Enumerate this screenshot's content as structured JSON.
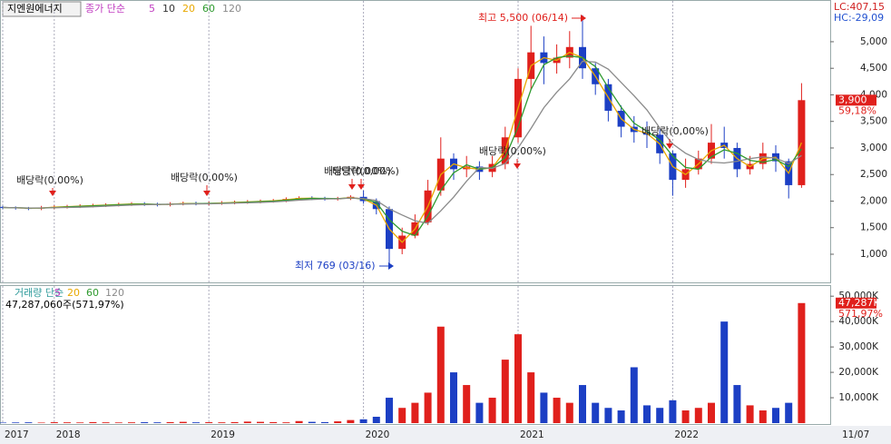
{
  "header": {
    "name": "지엔원에너지",
    "indicator": "종가 단순",
    "lc": "LC:407,15",
    "hc": "HC:-29,09"
  },
  "chart_data": {
    "type": "candlestick",
    "categories": [
      "2017",
      null,
      null,
      null,
      "2018",
      null,
      null,
      null,
      null,
      null,
      null,
      null,
      null,
      null,
      null,
      null,
      "2019",
      null,
      null,
      null,
      null,
      null,
      null,
      null,
      null,
      null,
      null,
      null,
      "2020",
      null,
      null,
      null,
      null,
      null,
      null,
      null,
      null,
      null,
      null,
      null,
      "2021",
      null,
      null,
      null,
      null,
      null,
      null,
      null,
      null,
      null,
      null,
      null,
      "2022",
      null,
      null,
      null,
      null,
      null,
      null,
      null,
      null,
      null,
      null
    ],
    "x_end_label": "11/07",
    "open": [
      1890,
      1880,
      1870,
      1860,
      1880,
      1890,
      1900,
      1910,
      1920,
      1930,
      1940,
      1950,
      1940,
      1930,
      1950,
      1960,
      1950,
      1960,
      1970,
      1980,
      1990,
      2000,
      2010,
      2040,
      2060,
      2050,
      2040,
      2050,
      2080,
      2000,
      1850,
      1100,
      1350,
      1600,
      2200,
      2800,
      2600,
      2650,
      2550,
      2700,
      3200,
      4300,
      4800,
      4600,
      4700,
      4900,
      4500,
      4200,
      3700,
      3400,
      3300,
      3250,
      2900,
      2400,
      2600,
      2800,
      3100,
      3000,
      2600,
      2700,
      2900,
      2750,
      2300
    ],
    "high": [
      1910,
      1900,
      1890,
      1910,
      1920,
      1930,
      1940,
      1950,
      1960,
      1970,
      1980,
      1980,
      1970,
      1980,
      1990,
      1990,
      1990,
      2000,
      2010,
      2020,
      2030,
      2040,
      2070,
      2090,
      2090,
      2080,
      2080,
      2110,
      2200,
      2050,
      1900,
      1500,
      1750,
      2400,
      3200,
      2900,
      2850,
      2750,
      2850,
      3400,
      4500,
      5300,
      5100,
      4950,
      5200,
      5500,
      4600,
      4300,
      3800,
      3600,
      3500,
      3350,
      2950,
      2800,
      2950,
      3450,
      3400,
      3100,
      2850,
      3100,
      3050,
      2800,
      4220
    ],
    "low": [
      1850,
      1840,
      1830,
      1830,
      1850,
      1860,
      1870,
      1880,
      1890,
      1900,
      1910,
      1910,
      1900,
      1900,
      1920,
      1920,
      1920,
      1930,
      1940,
      1950,
      1960,
      1970,
      1980,
      2010,
      2020,
      2010,
      2010,
      2020,
      1950,
      1750,
      769,
      1000,
      1300,
      1550,
      2100,
      2400,
      2450,
      2400,
      2450,
      2600,
      3100,
      4100,
      4200,
      4400,
      4500,
      4300,
      4000,
      3500,
      3200,
      3100,
      3000,
      2700,
      2100,
      2250,
      2500,
      2700,
      2800,
      2450,
      2500,
      2600,
      2550,
      2050,
      2250
    ],
    "close": [
      1880,
      1870,
      1860,
      1880,
      1890,
      1900,
      1910,
      1920,
      1930,
      1940,
      1950,
      1940,
      1930,
      1950,
      1960,
      1950,
      1960,
      1970,
      1980,
      1990,
      2000,
      2010,
      2040,
      2060,
      2050,
      2040,
      2050,
      2080,
      2000,
      1850,
      1100,
      1350,
      1600,
      2200,
      2800,
      2600,
      2650,
      2550,
      2700,
      3200,
      4300,
      4800,
      4600,
      4700,
      4900,
      4500,
      4200,
      3700,
      3400,
      3300,
      3250,
      2900,
      2400,
      2600,
      2800,
      3100,
      3000,
      2600,
      2700,
      2900,
      2750,
      2300,
      3900
    ],
    "up_color": "#e0201c",
    "down_color": "#1c3fc4",
    "ylim": [
      470,
      5700
    ],
    "yticks": [
      {
        "value": 1000,
        "label": "1,000"
      },
      {
        "value": 1500,
        "label": "1,500"
      },
      {
        "value": 2000,
        "label": "2,000"
      },
      {
        "value": 2500,
        "label": "2,500"
      },
      {
        "value": 3000,
        "label": "3,000"
      },
      {
        "value": 3500,
        "label": "3,500"
      },
      {
        "value": 4000,
        "label": "4,000"
      },
      {
        "value": 4500,
        "label": "4,500"
      },
      {
        "value": 5000,
        "label": "5,000"
      }
    ],
    "legend_extra": [
      {
        "name": "5",
        "color": "#c03cc0"
      },
      {
        "name": "10",
        "color": "#333333"
      }
    ],
    "series": [
      {
        "name": "20",
        "color": "#e8a800",
        "values": [
          1880,
          1875,
          1865,
          1870,
          1885,
          1895,
          1905,
          1915,
          1925,
          1935,
          1945,
          1945,
          1935,
          1940,
          1955,
          1955,
          1955,
          1965,
          1975,
          1985,
          1995,
          2005,
          2025,
          2050,
          2055,
          2045,
          2045,
          2065,
          2040,
          1925,
          1475,
          1225,
          1475,
          1900,
          2500,
          2700,
          2625,
          2600,
          2625,
          2950,
          3750,
          4550,
          4700,
          4650,
          4800,
          4700,
          4350,
          3950,
          3550,
          3350,
          3275,
          3075,
          2650,
          2500,
          2700,
          2950,
          3050,
          2800,
          2650,
          2800,
          2825,
          2525,
          3100
        ]
      },
      {
        "name": "60",
        "color": "#2e9a2e",
        "values": [
          1880,
          1875,
          1870,
          1870,
          1877,
          1890,
          1900,
          1910,
          1920,
          1930,
          1940,
          1943,
          1940,
          1940,
          1947,
          1953,
          1957,
          1960,
          1970,
          1980,
          1990,
          2000,
          2017,
          2037,
          2050,
          2050,
          2047,
          2057,
          2043,
          1977,
          1650,
          1433,
          1350,
          1717,
          2200,
          2533,
          2683,
          2600,
          2633,
          2817,
          3400,
          4100,
          4567,
          4700,
          4733,
          4700,
          4533,
          4133,
          3767,
          3467,
          3317,
          3150,
          2850,
          2633,
          2600,
          2833,
          2967,
          2900,
          2767,
          2733,
          2783,
          2650,
          2983
        ]
      },
      {
        "name": "120",
        "color": "#8a8a8a",
        "values": [
          1880,
          1875,
          1870,
          1872,
          1876,
          1880,
          1885,
          1893,
          1905,
          1915,
          1925,
          1932,
          1937,
          1940,
          1945,
          1947,
          1948,
          1955,
          1962,
          1968,
          1975,
          1985,
          2000,
          2017,
          2030,
          2040,
          2043,
          2057,
          2047,
          2012,
          1853,
          1738,
          1630,
          1583,
          1817,
          2075,
          2375,
          2633,
          2617,
          2708,
          3000,
          3367,
          3758,
          4050,
          4300,
          4633,
          4617,
          4483,
          4233,
          3983,
          3717,
          3375,
          3075,
          2900,
          2783,
          2733,
          2717,
          2750,
          2800,
          2833,
          2808,
          2708,
          2858
        ]
      }
    ],
    "last_price_label": "3,900",
    "last_change_label": "59,18%",
    "annotations": [
      "배당락(0,00%)",
      "배당락(0,00%)",
      "배당락(0,00%)",
      "배당락(0,00%)",
      "배당락(0,00%)",
      "배당락(0,00%)",
      "최고 5,500 (06/14)",
      "최저 769 (03/16)"
    ],
    "volume": {
      "title": "거래량 단순",
      "legend": [
        {
          "name": "5",
          "color": "#c03cc0"
        },
        {
          "name": "20",
          "color": "#e8a800"
        },
        {
          "name": "60",
          "color": "#2e9a2e"
        },
        {
          "name": "120",
          "color": "#8a8a8a"
        }
      ],
      "summary": "47,287,060주(571,97%)",
      "values": [
        200,
        250,
        300,
        200,
        350,
        300,
        250,
        400,
        300,
        250,
        300,
        350,
        300,
        400,
        500,
        300,
        350,
        300,
        400,
        600,
        500,
        400,
        300,
        800,
        500,
        400,
        700,
        1200,
        1500,
        2500,
        10000,
        6000,
        8000,
        12000,
        38000,
        20000,
        15000,
        8000,
        10000,
        25000,
        35000,
        20000,
        12000,
        10000,
        8000,
        15000,
        8000,
        6000,
        5000,
        22000,
        7000,
        6000,
        9000,
        5000,
        6000,
        8000,
        40000,
        15000,
        7000,
        5000,
        6000,
        8000,
        47287
      ],
      "ylim": [
        0,
        51500
      ],
      "yticks": [
        {
          "value": 10000,
          "label": "10,000K"
        },
        {
          "value": 20000,
          "label": "20,000K"
        },
        {
          "value": 30000,
          "label": "30,000K"
        },
        {
          "value": 40000,
          "label": "40,000K"
        },
        {
          "value": 50000,
          "label": "50,000K"
        }
      ],
      "last_label": "47,287K",
      "last_change_label": "571,97%"
    }
  }
}
